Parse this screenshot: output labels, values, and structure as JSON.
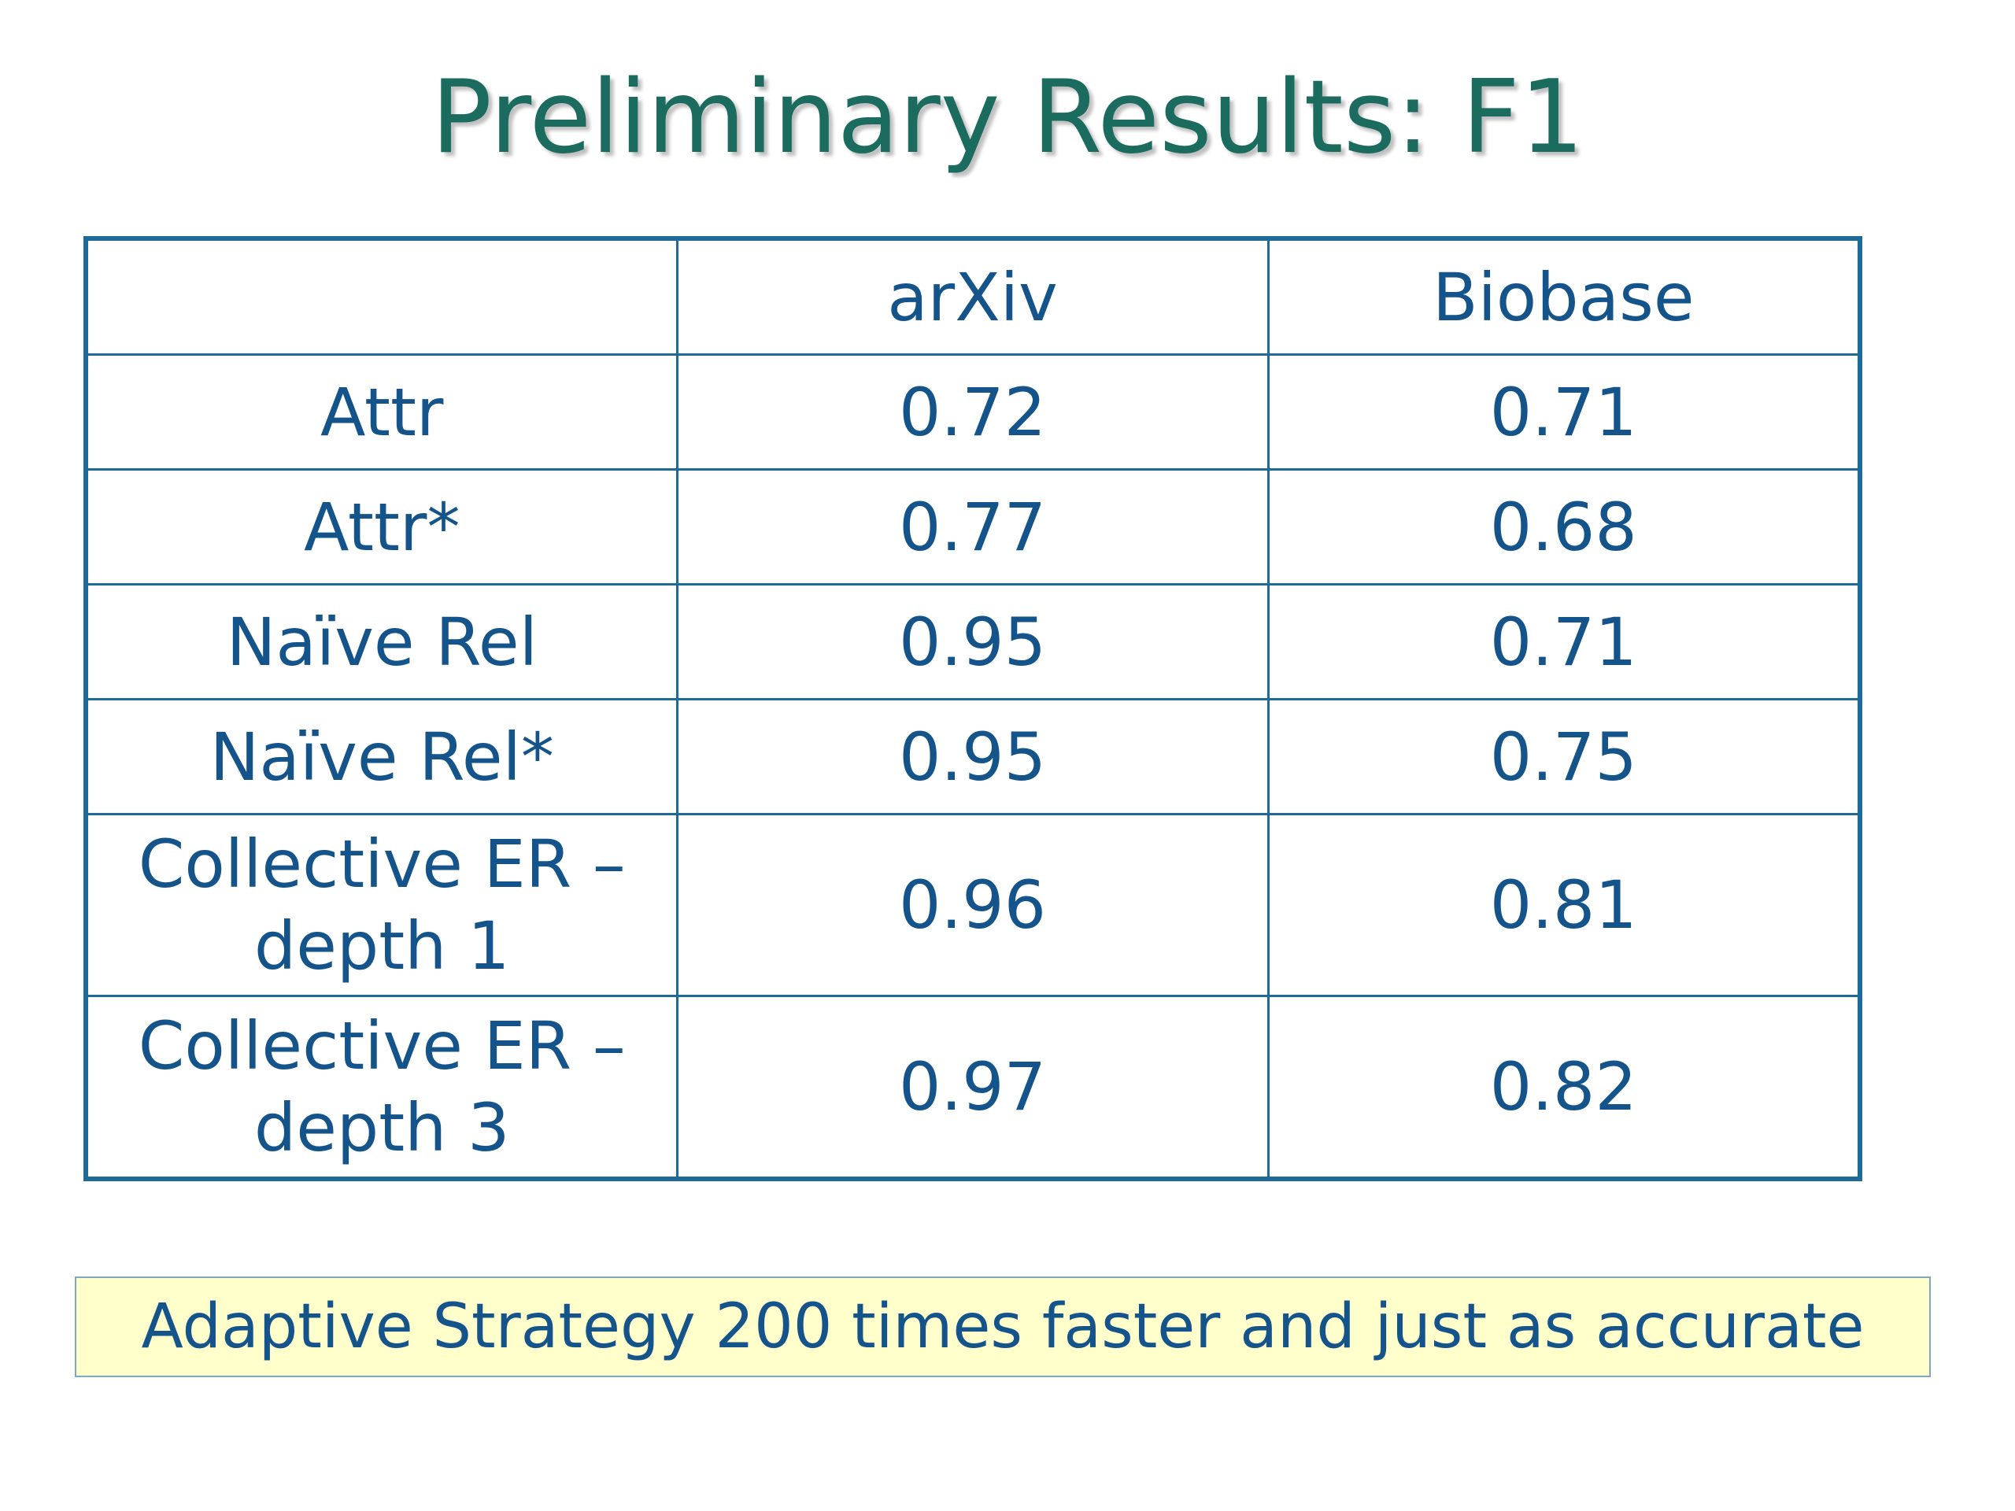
{
  "slide": {
    "title": "Preliminary Results: F1"
  },
  "table": {
    "header": [
      "",
      "arXiv",
      "Biobase"
    ],
    "rows": [
      {
        "label": "Attr",
        "arxiv": "0.72",
        "biobase": "0.71"
      },
      {
        "label": "Attr*",
        "arxiv": "0.77",
        "biobase": "0.68"
      },
      {
        "label": "Naïve Rel",
        "arxiv": "0.95",
        "biobase": "0.71"
      },
      {
        "label": "Naïve Rel*",
        "arxiv": "0.95",
        "biobase": "0.75"
      },
      {
        "label": "Collective ER – depth 1",
        "arxiv": "0.96",
        "biobase": "0.81"
      },
      {
        "label": "Collective ER – depth 3",
        "arxiv": "0.97",
        "biobase": "0.82"
      }
    ]
  },
  "callout": {
    "text": "Adaptive Strategy 200 times faster and just as accurate"
  },
  "colors": {
    "title": "#1b6b5e",
    "text": "#14548a",
    "border": "#1f6a96",
    "callout_bg": "#ffffcc"
  }
}
